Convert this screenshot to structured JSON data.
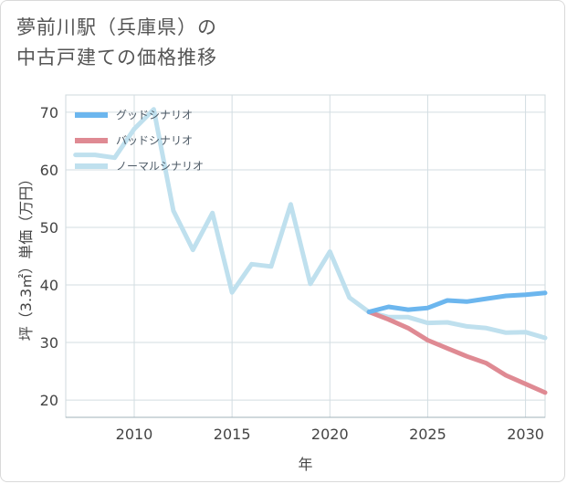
{
  "title": {
    "line1": "夢前川駅（兵庫県）の",
    "line2": "中古戸建ての価格推移"
  },
  "chart_data": {
    "type": "line",
    "title": "夢前川駅（兵庫県）の中古戸建ての価格推移",
    "xlabel": "年",
    "ylabel": "坪（3.3㎡）単価（万円）",
    "xlim": [
      2006.5,
      2031
    ],
    "ylim": [
      17,
      73
    ],
    "xticks": [
      2010,
      2015,
      2020,
      2025,
      2030
    ],
    "xtick_labels": [
      "2010",
      "2015",
      "2020",
      "2025",
      "2030"
    ],
    "yticks": [
      20,
      30,
      40,
      50,
      60,
      70
    ],
    "ytick_labels": [
      "20",
      "30",
      "40",
      "50",
      "60",
      "70"
    ],
    "grid": true,
    "legend_position": "top-left",
    "series": [
      {
        "name": "グッドシナリオ",
        "color": "#6cb6ee",
        "x": [
          2022,
          2023,
          2024,
          2025,
          2026,
          2027,
          2028,
          2029,
          2030,
          2031
        ],
        "y": [
          35.3,
          36.2,
          35.7,
          36.0,
          37.3,
          37.1,
          37.6,
          38.1,
          38.3,
          38.6
        ]
      },
      {
        "name": "バッドシナリオ",
        "color": "#df8a93",
        "x": [
          2022,
          2023,
          2024,
          2025,
          2026,
          2027,
          2028,
          2029,
          2030,
          2031
        ],
        "y": [
          35.3,
          34.0,
          32.5,
          30.4,
          29.0,
          27.6,
          26.4,
          24.3,
          22.8,
          21.3
        ]
      },
      {
        "name": "ノーマルシナリオ",
        "color": "#bfe0ee",
        "x": [
          2007,
          2008,
          2009,
          2010,
          2011,
          2012,
          2013,
          2014,
          2015,
          2016,
          2017,
          2018,
          2019,
          2020,
          2021,
          2022,
          2023,
          2024,
          2025,
          2026,
          2027,
          2028,
          2029,
          2030,
          2031
        ],
        "y": [
          62.6,
          62.6,
          62.1,
          67.1,
          70.5,
          52.9,
          46.1,
          52.5,
          38.7,
          43.6,
          43.2,
          54.0,
          40.2,
          45.8,
          37.8,
          35.3,
          34.4,
          34.4,
          33.4,
          33.5,
          32.8,
          32.5,
          31.7,
          31.8,
          30.8
        ]
      }
    ]
  }
}
